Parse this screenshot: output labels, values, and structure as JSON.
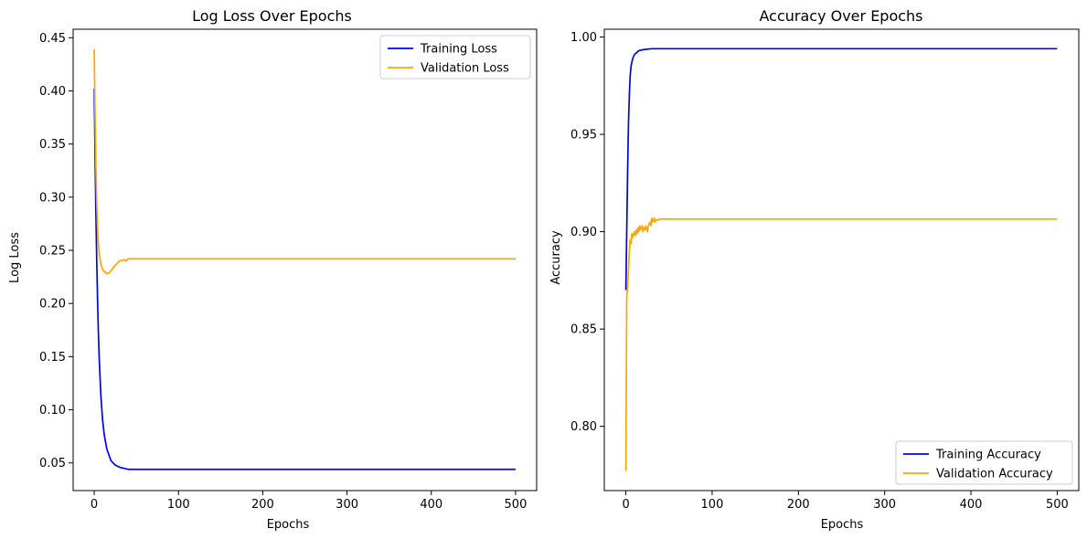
{
  "chart_data": [
    {
      "type": "line",
      "title": "Log Loss Over Epochs",
      "xlabel": "Epochs",
      "ylabel": "Log Loss",
      "xlim": [
        -25,
        525
      ],
      "ylim": [
        0.024,
        0.458
      ],
      "xticks": [
        "0",
        "100",
        "200",
        "300",
        "400",
        "500"
      ],
      "yticks": [
        "0.05",
        "0.10",
        "0.15",
        "0.20",
        "0.25",
        "0.30",
        "0.35",
        "0.40",
        "0.45"
      ],
      "grid": false,
      "legend_position": "upper right",
      "series": [
        {
          "name": "Training Loss",
          "color": "#0000ff",
          "x": [
            0,
            1,
            2,
            3,
            4,
            5,
            6,
            8,
            10,
            12,
            15,
            20,
            25,
            30,
            35,
            40,
            60,
            100,
            200,
            300,
            400,
            500
          ],
          "y": [
            0.402,
            0.34,
            0.285,
            0.24,
            0.203,
            0.172,
            0.147,
            0.112,
            0.09,
            0.076,
            0.063,
            0.052,
            0.048,
            0.046,
            0.045,
            0.044,
            0.044,
            0.044,
            0.044,
            0.044,
            0.044,
            0.044
          ]
        },
        {
          "name": "Validation Loss",
          "color": "#ffa500",
          "x": [
            0,
            1,
            2,
            3,
            4,
            5,
            6,
            8,
            10,
            12,
            15,
            18,
            20,
            25,
            30,
            35,
            38,
            40,
            50,
            100,
            200,
            300,
            400,
            500
          ],
          "y": [
            0.439,
            0.38,
            0.33,
            0.295,
            0.27,
            0.256,
            0.246,
            0.237,
            0.232,
            0.23,
            0.228,
            0.229,
            0.231,
            0.236,
            0.24,
            0.241,
            0.24,
            0.242,
            0.242,
            0.242,
            0.242,
            0.242,
            0.242,
            0.242
          ]
        }
      ]
    },
    {
      "type": "line",
      "title": "Accuracy Over Epochs",
      "xlabel": "Epochs",
      "ylabel": "Accuracy",
      "xlim": [
        -25,
        525
      ],
      "ylim": [
        0.767,
        1.004
      ],
      "xticks": [
        "0",
        "100",
        "200",
        "300",
        "400",
        "500"
      ],
      "yticks": [
        "0.80",
        "0.85",
        "0.90",
        "0.95",
        "1.00"
      ],
      "grid": false,
      "legend_position": "lower right",
      "series": [
        {
          "name": "Training Accuracy",
          "color": "#0000ff",
          "x": [
            0,
            1,
            2,
            3,
            4,
            5,
            6,
            8,
            10,
            15,
            20,
            30,
            40,
            100,
            200,
            300,
            400,
            500
          ],
          "y": [
            0.87,
            0.9,
            0.93,
            0.955,
            0.97,
            0.98,
            0.985,
            0.989,
            0.991,
            0.993,
            0.9935,
            0.994,
            0.994,
            0.994,
            0.994,
            0.994,
            0.994,
            0.994
          ],
          "_": ""
        },
        {
          "name": "Validation Accuracy",
          "color": "#ffa500",
          "x": [
            0,
            1,
            2,
            3,
            4,
            5,
            6,
            7,
            8,
            9,
            10,
            11,
            12,
            13,
            14,
            15,
            16,
            17,
            18,
            19,
            20,
            21,
            22,
            23,
            24,
            25,
            26,
            27,
            28,
            29,
            30,
            31,
            32,
            33,
            34,
            35,
            36,
            40,
            50,
            100,
            200,
            300,
            400,
            500
          ],
          "y": [
            0.777,
            0.866,
            0.872,
            0.88,
            0.89,
            0.896,
            0.894,
            0.899,
            0.897,
            0.899,
            0.9,
            0.898,
            0.901,
            0.899,
            0.902,
            0.9,
            0.903,
            0.901,
            0.902,
            0.903,
            0.9,
            0.902,
            0.901,
            0.903,
            0.902,
            0.9,
            0.903,
            0.904,
            0.905,
            0.903,
            0.907,
            0.905,
            0.906,
            0.907,
            0.905,
            0.906,
            0.906,
            0.9065,
            0.9065,
            0.9065,
            0.9065,
            0.9065,
            0.9065,
            0.9065
          ]
        }
      ]
    }
  ]
}
